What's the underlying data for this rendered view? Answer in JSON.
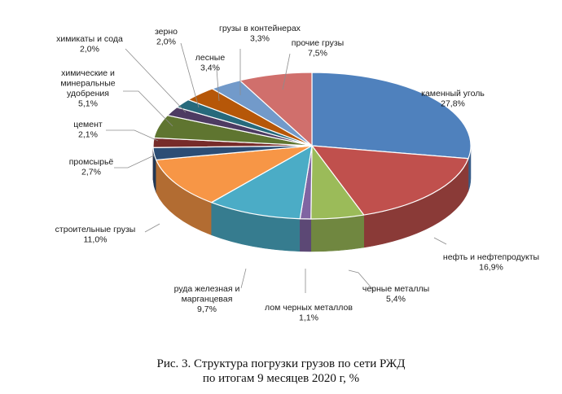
{
  "chart_data": {
    "type": "pie",
    "style": "3d",
    "slices": [
      {
        "label": "каменный уголь",
        "value": 27.8,
        "display": "27,8%",
        "color": "#4f81bd"
      },
      {
        "label": "нефть и нефтепродукты",
        "value": 16.9,
        "display": "16,9%",
        "color": "#c0504d"
      },
      {
        "label": "черные металлы",
        "value": 5.4,
        "display": "5,4%",
        "color": "#9bbb59"
      },
      {
        "label": "лом черных металлов",
        "value": 1.1,
        "display": "1,1%",
        "color": "#8064a2"
      },
      {
        "label": "руда железная и марганцевая",
        "value": 9.7,
        "display": "9,7%",
        "color": "#4bacc6"
      },
      {
        "label": "строительные грузы",
        "value": 11.0,
        "display": "11,0%",
        "color": "#f79646"
      },
      {
        "label": "промсырьё",
        "value": 2.7,
        "display": "2,7%",
        "color": "#2c4d75"
      },
      {
        "label": "цемент",
        "value": 2.1,
        "display": "2,1%",
        "color": "#772c2a"
      },
      {
        "label": "химические и минеральные удобрения",
        "value": 5.1,
        "display": "5,1%",
        "color": "#5f7530"
      },
      {
        "label": "химикаты и сода",
        "value": 2.0,
        "display": "2,0%",
        "color": "#4d3b62"
      },
      {
        "label": "зерно",
        "value": 2.0,
        "display": "2,0%",
        "color": "#276a7c"
      },
      {
        "label": "лесные",
        "value": 3.4,
        "display": "3,4%",
        "color": "#b65708"
      },
      {
        "label": "грузы в контейнерах",
        "value": 3.3,
        "display": "3,3%",
        "color": "#729aca"
      },
      {
        "label": "прочие грузы",
        "value": 7.5,
        "display": "7,5%",
        "color": "#d06f6c"
      }
    ]
  },
  "caption": {
    "line1": "Рис. 3. Структура погрузки грузов по сети РЖД",
    "line2": "по итогам 9 месяцев 2020 г, %"
  }
}
